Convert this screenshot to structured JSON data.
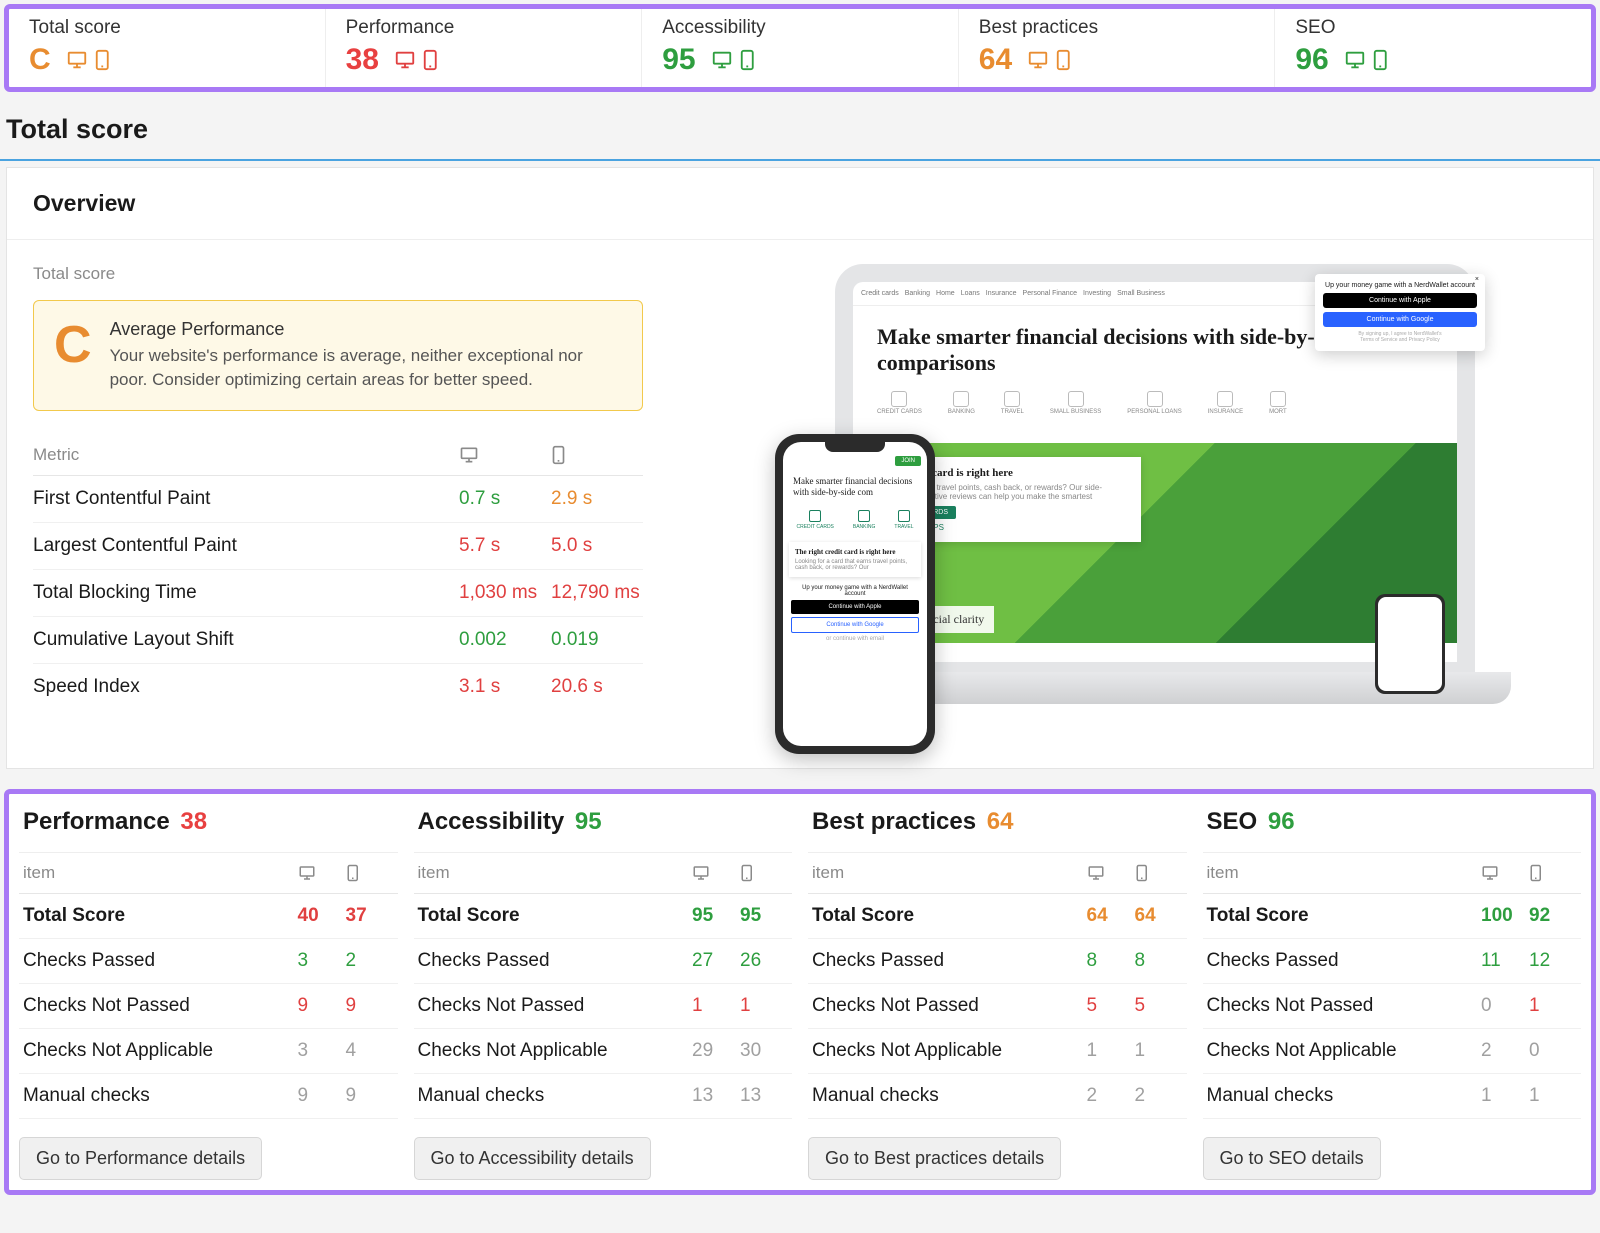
{
  "colors": {
    "green": "#2e9e3f",
    "red": "#e04040",
    "orange": "#e88c30",
    "gray": "#a0a0a0",
    "purple_border": "#a879f5"
  },
  "top_scores": [
    {
      "label": "Total score",
      "value": "C",
      "color": "sc-orange",
      "icon_color": "#e88c30"
    },
    {
      "label": "Performance",
      "value": "38",
      "color": "sc-red",
      "icon_color": "#e04040"
    },
    {
      "label": "Accessibility",
      "value": "95",
      "color": "sc-green",
      "icon_color": "#2e9e3f"
    },
    {
      "label": "Best practices",
      "value": "64",
      "color": "sc-orange",
      "icon_color": "#e88c30"
    },
    {
      "label": "SEO",
      "value": "96",
      "color": "sc-green",
      "icon_color": "#2e9e3f"
    }
  ],
  "section_title": "Total score",
  "overview": {
    "header": "Overview",
    "sub_label": "Total score",
    "grade_letter": "C",
    "grade_title": "Average Performance",
    "grade_desc": "Your website's performance is average, neither exceptional nor poor. Consider optimizing certain areas for better speed.",
    "metric_header": "Metric",
    "metrics": [
      {
        "name": "First Contentful Paint",
        "desktop": "0.7 s",
        "desktop_c": "c-green",
        "mobile": "2.9 s",
        "mobile_c": "c-orange"
      },
      {
        "name": "Largest Contentful Paint",
        "desktop": "5.7 s",
        "desktop_c": "c-red",
        "mobile": "5.0 s",
        "mobile_c": "c-red"
      },
      {
        "name": "Total Blocking Time",
        "desktop": "1,030 ms",
        "desktop_c": "c-red",
        "mobile": "12,790 ms",
        "mobile_c": "c-red"
      },
      {
        "name": "Cumulative Layout Shift",
        "desktop": "0.002",
        "desktop_c": "c-green",
        "mobile": "0.019",
        "mobile_c": "c-green"
      },
      {
        "name": "Speed Index",
        "desktop": "3.1 s",
        "desktop_c": "c-red",
        "mobile": "20.6 s",
        "mobile_c": "c-red"
      }
    ]
  },
  "mock": {
    "hero_desktop": "Make smarter financial decisions with side-by-side comparisons",
    "hero_phone": "Make smarter financial decisions with side-by-side com",
    "card_title": "ight credit card is right here",
    "card_btn": "E CREDIT CARDS",
    "popup_title": "Up your money game with a NerdWallet account",
    "phone_card_title": "The right credit card is right here"
  },
  "summary_item_label": "item",
  "summary_rows_labels": [
    "Total Score",
    "Checks Passed",
    "Checks Not Passed",
    "Checks Not Applicable",
    "Manual checks"
  ],
  "summaries": [
    {
      "title": "Performance",
      "score": "38",
      "score_c": "sc-red",
      "rows": [
        {
          "d": "40",
          "m": "37",
          "dc": "c-red",
          "mc": "c-red",
          "bold": true
        },
        {
          "d": "3",
          "m": "2",
          "dc": "c-green",
          "mc": "c-green"
        },
        {
          "d": "9",
          "m": "9",
          "dc": "c-red",
          "mc": "c-red"
        },
        {
          "d": "3",
          "m": "4",
          "dc": "c-gray",
          "mc": "c-gray"
        },
        {
          "d": "9",
          "m": "9",
          "dc": "c-gray",
          "mc": "c-gray"
        }
      ],
      "button": "Go to Performance details"
    },
    {
      "title": "Accessibility",
      "score": "95",
      "score_c": "sc-green",
      "rows": [
        {
          "d": "95",
          "m": "95",
          "dc": "c-green",
          "mc": "c-green",
          "bold": true
        },
        {
          "d": "27",
          "m": "26",
          "dc": "c-green",
          "mc": "c-green"
        },
        {
          "d": "1",
          "m": "1",
          "dc": "c-red",
          "mc": "c-red"
        },
        {
          "d": "29",
          "m": "30",
          "dc": "c-gray",
          "mc": "c-gray"
        },
        {
          "d": "13",
          "m": "13",
          "dc": "c-gray",
          "mc": "c-gray"
        }
      ],
      "button": "Go to Accessibility details"
    },
    {
      "title": "Best practices",
      "score": "64",
      "score_c": "sc-orange",
      "rows": [
        {
          "d": "64",
          "m": "64",
          "dc": "c-orange",
          "mc": "c-orange",
          "bold": true
        },
        {
          "d": "8",
          "m": "8",
          "dc": "c-green",
          "mc": "c-green"
        },
        {
          "d": "5",
          "m": "5",
          "dc": "c-red",
          "mc": "c-red"
        },
        {
          "d": "1",
          "m": "1",
          "dc": "c-gray",
          "mc": "c-gray"
        },
        {
          "d": "2",
          "m": "2",
          "dc": "c-gray",
          "mc": "c-gray"
        }
      ],
      "button": "Go to Best practices details"
    },
    {
      "title": "SEO",
      "score": "96",
      "score_c": "sc-green",
      "rows": [
        {
          "d": "100",
          "m": "92",
          "dc": "c-green",
          "mc": "c-green",
          "bold": true
        },
        {
          "d": "11",
          "m": "12",
          "dc": "c-green",
          "mc": "c-green"
        },
        {
          "d": "0",
          "m": "1",
          "dc": "c-gray",
          "mc": "c-red"
        },
        {
          "d": "2",
          "m": "0",
          "dc": "c-gray",
          "mc": "c-gray"
        },
        {
          "d": "1",
          "m": "1",
          "dc": "c-gray",
          "mc": "c-gray"
        }
      ],
      "button": "Go to SEO details"
    }
  ]
}
